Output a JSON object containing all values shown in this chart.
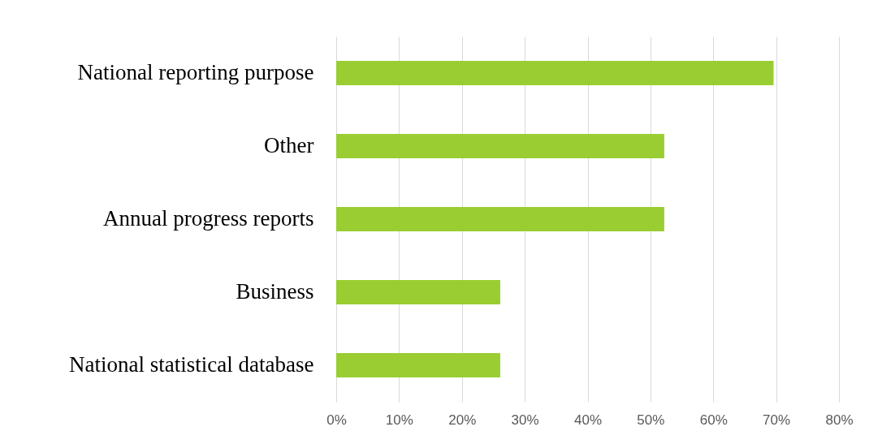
{
  "chart_data": {
    "type": "bar",
    "orientation": "horizontal",
    "categories": [
      "National reporting purpose",
      "Other",
      "Annual progress reports",
      "Business",
      "National statistical database"
    ],
    "values": [
      69.6,
      52.2,
      52.2,
      26.1,
      26.1
    ],
    "color": "#9acd32",
    "xlim": [
      0,
      80
    ],
    "xticks": [
      {
        "value": 0,
        "label": "0%"
      },
      {
        "value": 10,
        "label": "10%"
      },
      {
        "value": 20,
        "label": "20%"
      },
      {
        "value": 30,
        "label": "30%"
      },
      {
        "value": 40,
        "label": "40%"
      },
      {
        "value": 50,
        "label": "50%"
      },
      {
        "value": 60,
        "label": "60%"
      },
      {
        "value": 70,
        "label": "70%"
      },
      {
        "value": 80,
        "label": "80%"
      }
    ],
    "grid": "x"
  }
}
